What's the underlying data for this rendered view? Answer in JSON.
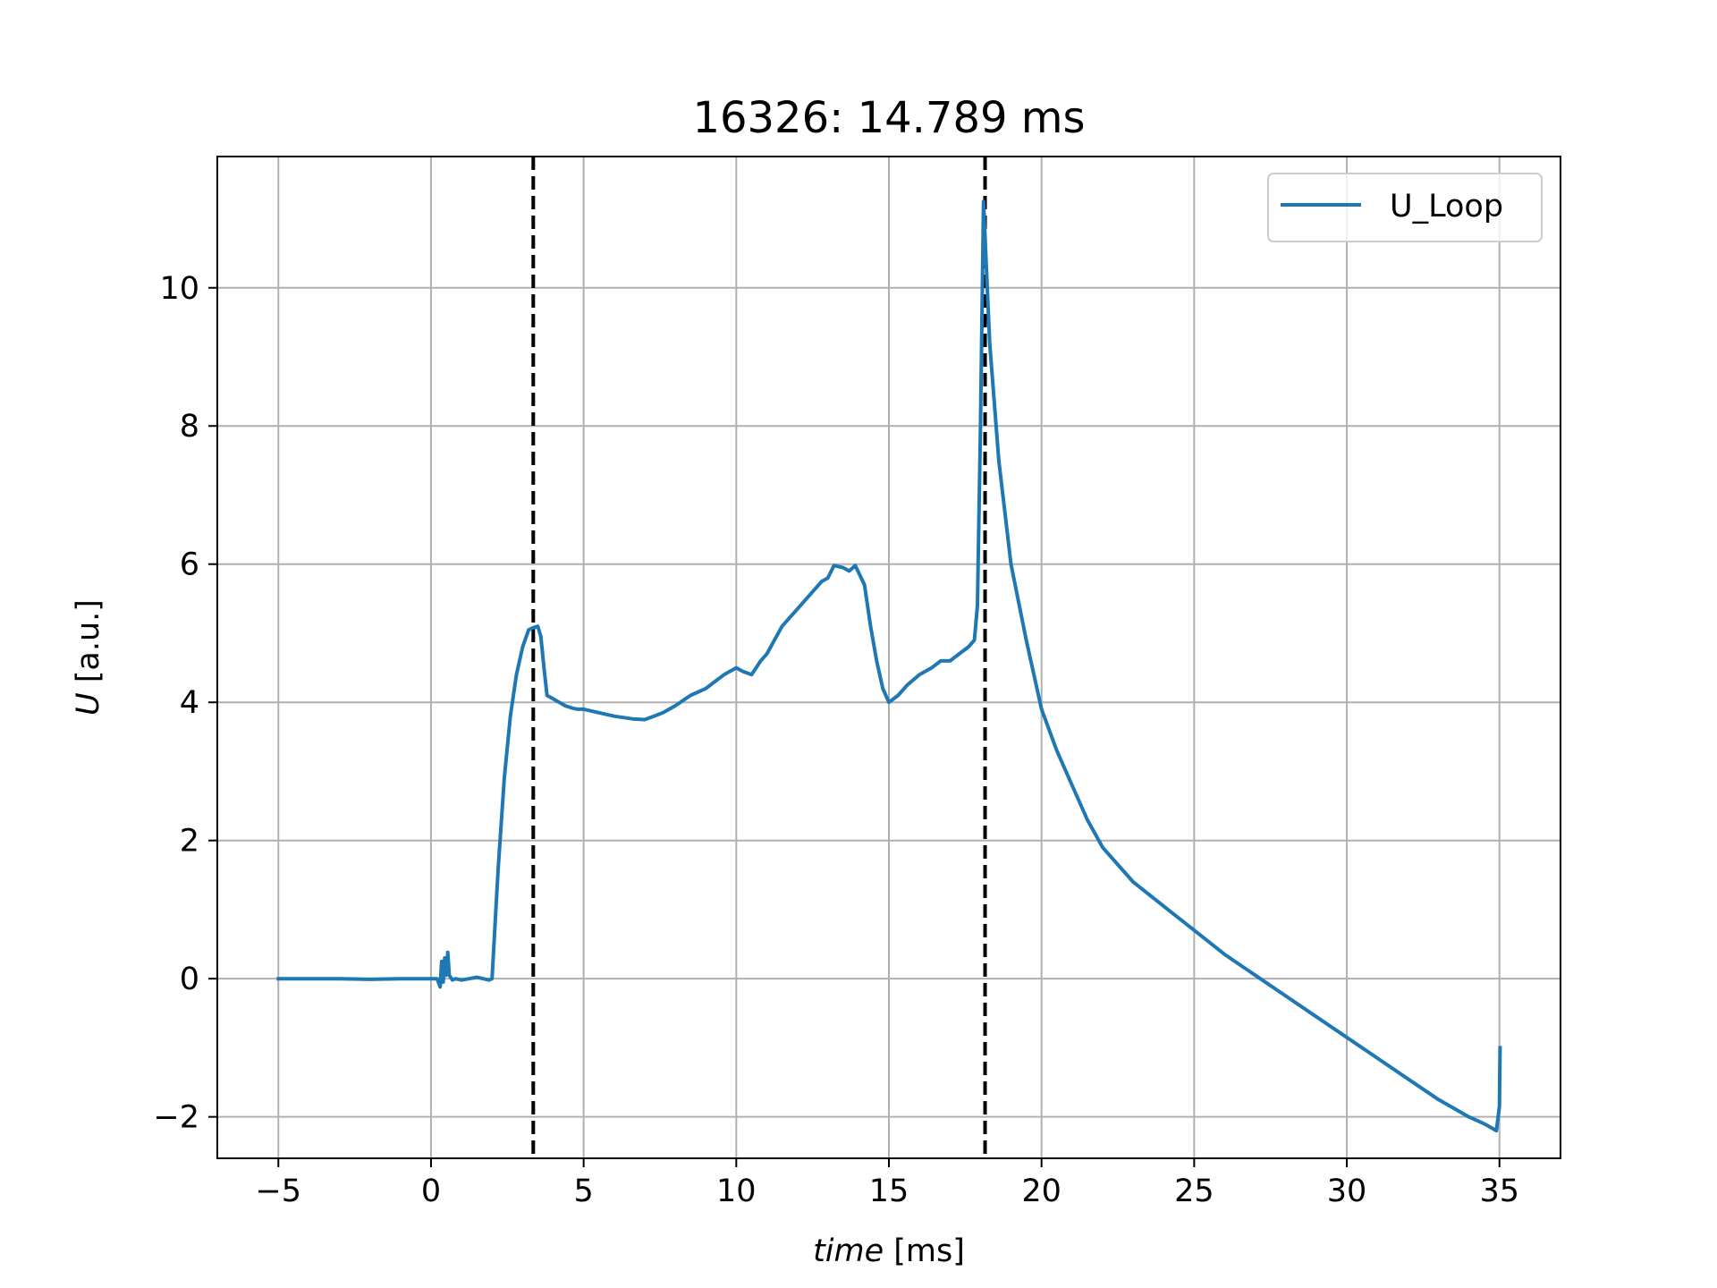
{
  "chart_data": {
    "type": "line",
    "title": "16326: 14.789 ms",
    "xlabel_var": "time",
    "xlabel_unit": " [ms]",
    "ylabel_var": "U",
    "ylabel_unit": " [a.u.]",
    "xlim": [
      -7,
      37
    ],
    "ylim": [
      -2.6,
      11.9
    ],
    "xticks": [
      -5,
      0,
      5,
      10,
      15,
      20,
      25,
      30,
      35
    ],
    "xtick_labels": [
      "−5",
      "0",
      "5",
      "10",
      "15",
      "20",
      "25",
      "30",
      "35"
    ],
    "yticks": [
      -2,
      0,
      2,
      4,
      6,
      8,
      10
    ],
    "ytick_labels": [
      "−2",
      "0",
      "2",
      "4",
      "6",
      "8",
      "10"
    ],
    "grid": true,
    "legend_position": "top-right",
    "series": [
      {
        "name": "U_Loop",
        "color": "#1f77b4",
        "x": [
          -5,
          -4,
          -3,
          -2,
          -1,
          0,
          0.2,
          0.3,
          0.35,
          0.4,
          0.45,
          0.5,
          0.55,
          0.6,
          0.7,
          0.8,
          1.0,
          1.5,
          1.9,
          2.0,
          2.2,
          2.4,
          2.6,
          2.8,
          3.0,
          3.2,
          3.35,
          3.5,
          3.6,
          3.7,
          3.8,
          4.0,
          4.2,
          4.4,
          4.6,
          4.8,
          5.0,
          5.5,
          6.0,
          6.3,
          6.6,
          7.0,
          7.3,
          7.6,
          8.0,
          8.5,
          9.0,
          9.3,
          9.6,
          10.0,
          10.2,
          10.5,
          10.8,
          11.0,
          11.5,
          12.0,
          12.5,
          12.8,
          13.0,
          13.2,
          13.5,
          13.7,
          13.9,
          14.2,
          14.4,
          14.6,
          14.8,
          15.0,
          15.3,
          15.6,
          16.0,
          16.4,
          16.7,
          17.0,
          17.3,
          17.6,
          17.8,
          17.9,
          18.0,
          18.1,
          18.3,
          18.6,
          19.0,
          19.5,
          20.0,
          20.5,
          21.0,
          21.5,
          22.0,
          23.0,
          24.0,
          25.0,
          26.0,
          27.0,
          28.0,
          29.0,
          30.0,
          31.0,
          32.0,
          33.0,
          34.0,
          34.5,
          34.9,
          35.0,
          35.02
        ],
        "y": [
          0.0,
          0.0,
          0.0,
          -0.01,
          0.0,
          0.0,
          0.0,
          -0.12,
          0.25,
          -0.05,
          0.3,
          0.05,
          0.38,
          0.05,
          -0.02,
          0.0,
          -0.02,
          0.02,
          -0.02,
          0.0,
          1.6,
          2.9,
          3.8,
          4.4,
          4.8,
          5.05,
          5.08,
          5.1,
          4.95,
          4.5,
          4.1,
          4.05,
          4.0,
          3.95,
          3.92,
          3.9,
          3.9,
          3.85,
          3.8,
          3.78,
          3.76,
          3.75,
          3.8,
          3.85,
          3.95,
          4.1,
          4.2,
          4.3,
          4.4,
          4.5,
          4.45,
          4.4,
          4.6,
          4.7,
          5.1,
          5.35,
          5.6,
          5.75,
          5.8,
          5.98,
          5.95,
          5.9,
          5.98,
          5.7,
          5.1,
          4.6,
          4.2,
          4.0,
          4.1,
          4.25,
          4.4,
          4.5,
          4.6,
          4.6,
          4.7,
          4.8,
          4.9,
          5.4,
          8.0,
          11.25,
          9.2,
          7.5,
          6.0,
          4.9,
          3.9,
          3.3,
          2.8,
          2.3,
          1.9,
          1.4,
          1.05,
          0.7,
          0.35,
          0.05,
          -0.25,
          -0.55,
          -0.85,
          -1.15,
          -1.45,
          -1.75,
          -2.0,
          -2.1,
          -2.2,
          -1.85,
          -1.0
        ]
      }
    ],
    "vlines": [
      {
        "x": 3.35,
        "color": "#000000",
        "style": "dashed"
      },
      {
        "x": 18.15,
        "color": "#000000",
        "style": "dashed"
      }
    ]
  }
}
